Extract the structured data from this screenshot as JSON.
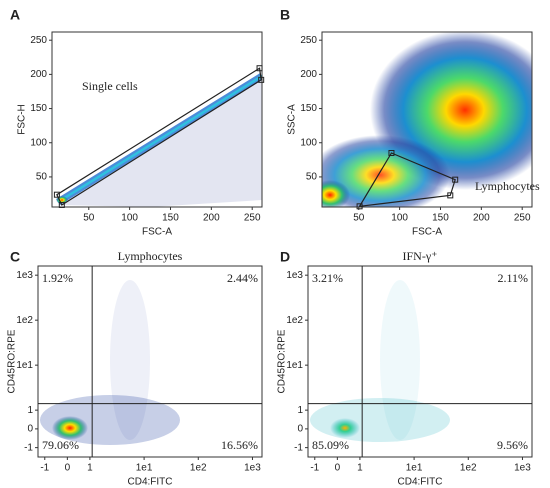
{
  "chart_data": [
    {
      "panel": "A",
      "type": "scatter",
      "scale": "linear",
      "x_label": "FSC-A",
      "y_label": "FSC-H",
      "xlim": [
        5,
        262
      ],
      "ylim": [
        6,
        262
      ],
      "xticks": [
        50,
        100,
        150,
        200,
        250
      ],
      "yticks": [
        50,
        100,
        150,
        200,
        250
      ],
      "annotation": "Single cells",
      "gate": {
        "x": [
          11,
          259,
          261,
          17
        ],
        "y": [
          24,
          209,
          192,
          9
        ]
      }
    },
    {
      "panel": "B",
      "type": "scatter",
      "scale": "linear",
      "x_label": "FSC-A",
      "y_label": "SSC-A",
      "xlim": [
        5,
        262
      ],
      "ylim": [
        6,
        262
      ],
      "xticks": [
        50,
        100,
        150,
        200,
        250
      ],
      "yticks": [
        50,
        100,
        150,
        200,
        250
      ],
      "annotation": "Lymphocytes",
      "gate": {
        "x": [
          90,
          168,
          162,
          51
        ],
        "y": [
          85,
          46,
          23,
          7
        ]
      }
    },
    {
      "panel": "C",
      "type": "quadrant",
      "scale": "logicle",
      "title": "Lymphocytes",
      "x_label": "CD4:FITC",
      "y_label": "CD45RO:RPE",
      "xlim": [
        -1.3,
        1500
      ],
      "ylim": [
        -1.5,
        1600
      ],
      "xticks": [
        -1,
        0,
        1,
        {
          "value": 10,
          "label": "1e1"
        },
        {
          "value": 100,
          "label": "1e2"
        },
        {
          "value": 1000,
          "label": "1e3"
        }
      ],
      "yticks": [
        -1,
        0,
        1,
        {
          "value": 10,
          "label": "1e1"
        },
        {
          "value": 100,
          "label": "1e2"
        },
        {
          "value": 1000,
          "label": "1e3"
        }
      ],
      "gate": {
        "x": 1.1,
        "y": 1.4
      },
      "quadrant_labels": [
        "1.92%",
        "2.44%",
        "79.06%",
        "16.56%"
      ]
    },
    {
      "panel": "D",
      "type": "quadrant",
      "scale": "logicle",
      "title": "IFN-γ⁺",
      "x_label": "CD4:FITC",
      "y_label": "CD45RO:RPE",
      "xlim": [
        -1.3,
        1500
      ],
      "ylim": [
        -1.5,
        1600
      ],
      "xticks": [
        -1,
        0,
        1,
        {
          "value": 10,
          "label": "1e1"
        },
        {
          "value": 100,
          "label": "1e2"
        },
        {
          "value": 1000,
          "label": "1e3"
        }
      ],
      "yticks": [
        -1,
        0,
        1,
        {
          "value": 10,
          "label": "1e1"
        },
        {
          "value": 100,
          "label": "1e2"
        },
        {
          "value": 1000,
          "label": "1e3"
        }
      ],
      "gate": {
        "x": 1.1,
        "y": 1.4
      },
      "quadrant_labels": [
        "3.21%",
        "2.11%",
        "85.09%",
        "9.56%"
      ]
    }
  ]
}
